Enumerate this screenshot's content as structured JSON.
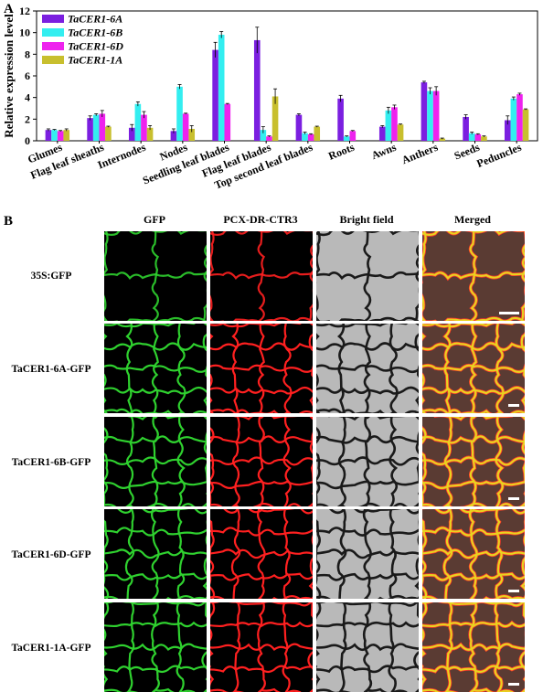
{
  "panel_a_label": "A",
  "panel_b_label": "B",
  "chart_data": {
    "type": "bar",
    "ylabel": "Relative expression level",
    "xlabel": "",
    "ylim": [
      0,
      12
    ],
    "yticks": [
      0,
      2,
      4,
      6,
      8,
      10,
      12
    ],
    "grid": false,
    "legend_position": "top-left",
    "categories": [
      "Glumes",
      "Flag leaf sheaths",
      "Internodes",
      "Nodes",
      "Seedling leaf blades",
      "Flag leaf blades",
      "Top second leaf blades",
      "Roots",
      "Awns",
      "Anthers",
      "Seeds",
      "Peduncles"
    ],
    "series": [
      {
        "name": "TaCER1-6A",
        "color": "#7b1fe0",
        "values": [
          1.0,
          2.1,
          1.2,
          0.9,
          8.4,
          9.3,
          2.4,
          3.9,
          1.3,
          5.4,
          2.2,
          1.9
        ],
        "errors": [
          0.1,
          0.2,
          0.3,
          0.2,
          0.7,
          1.2,
          0.1,
          0.3,
          0.1,
          0.1,
          0.2,
          0.4
        ]
      },
      {
        "name": "TaCER1-6B",
        "color": "#33eef0",
        "values": [
          1.0,
          2.4,
          3.4,
          5.0,
          9.8,
          1.0,
          0.7,
          0.4,
          2.8,
          4.6,
          0.7,
          3.9
        ],
        "errors": [
          0.05,
          0.1,
          0.2,
          0.2,
          0.3,
          0.3,
          0.1,
          0.05,
          0.3,
          0.3,
          0.1,
          0.15
        ]
      },
      {
        "name": "TaCER1-6D",
        "color": "#ee22ee",
        "values": [
          0.9,
          2.5,
          2.4,
          2.5,
          3.4,
          0.4,
          0.6,
          0.9,
          3.1,
          4.6,
          0.6,
          4.3
        ],
        "errors": [
          0.05,
          0.3,
          0.3,
          0.05,
          0.05,
          0.05,
          0.05,
          0.05,
          0.2,
          0.4,
          0.05,
          0.1
        ]
      },
      {
        "name": "TaCER1-1A",
        "color": "#c8bf2e",
        "values": [
          1.0,
          1.3,
          1.2,
          1.1,
          0.0,
          4.1,
          1.3,
          0.0,
          1.5,
          0.2,
          0.4,
          2.9
        ],
        "errors": [
          0.1,
          0.05,
          0.2,
          0.3,
          0.0,
          0.7,
          0.05,
          0.0,
          0.05,
          0.05,
          0.05,
          0.05
        ]
      }
    ]
  },
  "micro": {
    "columns": [
      "GFP",
      "PCX-DR-CTR3",
      "Bright field",
      "Merged"
    ],
    "rows": [
      "35S:GFP",
      "TaCER1-6A-GFP",
      "TaCER1-6B-GFP",
      "TaCER1-6D-GFP",
      "TaCER1-1A-GFP"
    ]
  }
}
